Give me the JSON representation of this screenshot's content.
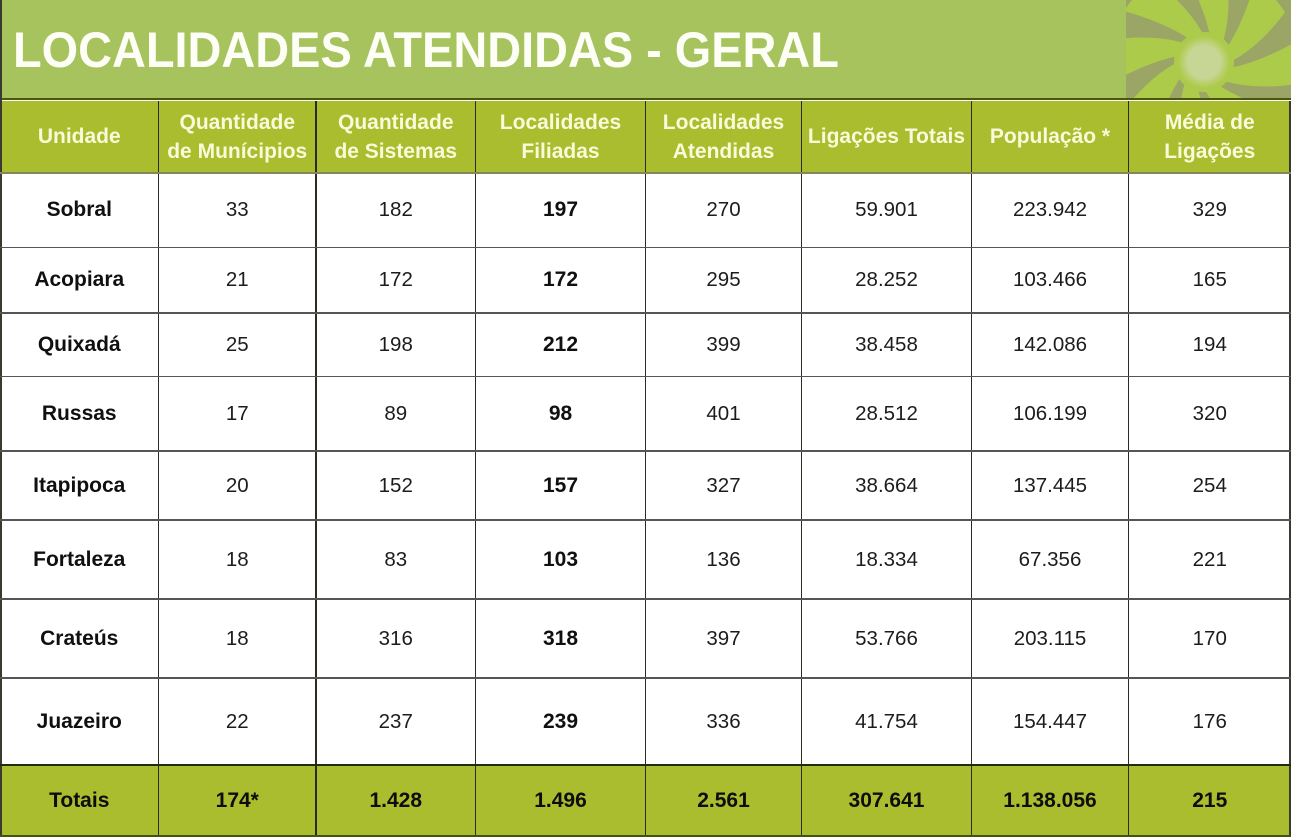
{
  "slide": {
    "title": "LOCALIDADES ATENDIDAS - GERAL",
    "logo_icon": "flower-pinwheel-logo",
    "colors": {
      "banner_green": "#a7c35e",
      "header_green": "#a9bd2e",
      "totals_green": "#a9bd2e",
      "logo_background_olive": "#9aa566",
      "logo_petal_green": "#adcb4b",
      "logo_center_pale": "#c7d795",
      "title_text": "#fdfef5",
      "header_text": "#f7fbda",
      "body_text": "#1c1c1c",
      "dark_border_olive": "#4a5710"
    }
  },
  "table": {
    "columns": [
      {
        "id": "unidade",
        "label": "Unidade",
        "bold_values": true
      },
      {
        "id": "municipios",
        "label": "Quantidade\nde Munícipios",
        "bold_values": false
      },
      {
        "id": "sistemas",
        "label": "Quantidade\nde Sistemas",
        "bold_values": false
      },
      {
        "id": "filiadas",
        "label": "Localidades\nFiliadas",
        "bold_values": true
      },
      {
        "id": "atendidas",
        "label": "Localidades\nAtendidas",
        "bold_values": false
      },
      {
        "id": "ligacoes",
        "label": "Ligações Totais",
        "bold_values": false
      },
      {
        "id": "populacao",
        "label": "População *",
        "bold_values": false
      },
      {
        "id": "media",
        "label": "Média de\nLigações",
        "bold_values": false
      }
    ],
    "rows": [
      {
        "unidade": "Sobral",
        "municipios": "33",
        "sistemas": "182",
        "filiadas": "197",
        "atendidas": "270",
        "ligacoes": "59.901",
        "populacao": "223.942",
        "media": "329"
      },
      {
        "unidade": "Acopiara",
        "municipios": "21",
        "sistemas": "172",
        "filiadas": "172",
        "atendidas": "295",
        "ligacoes": "28.252",
        "populacao": "103.466",
        "media": "165"
      },
      {
        "unidade": "Quixadá",
        "municipios": "25",
        "sistemas": "198",
        "filiadas": "212",
        "atendidas": "399",
        "ligacoes": "38.458",
        "populacao": "142.086",
        "media": "194"
      },
      {
        "unidade": "Russas",
        "municipios": "17",
        "sistemas": "89",
        "filiadas": "98",
        "atendidas": "401",
        "ligacoes": "28.512",
        "populacao": "106.199",
        "media": "320"
      },
      {
        "unidade": "Itapipoca",
        "municipios": "20",
        "sistemas": "152",
        "filiadas": "157",
        "atendidas": "327",
        "ligacoes": "38.664",
        "populacao": "137.445",
        "media": "254"
      },
      {
        "unidade": "Fortaleza",
        "municipios": "18",
        "sistemas": "83",
        "filiadas": "103",
        "atendidas": "136",
        "ligacoes": "18.334",
        "populacao": "67.356",
        "media": "221"
      },
      {
        "unidade": "Crateús",
        "municipios": "18",
        "sistemas": "316",
        "filiadas": "318",
        "atendidas": "397",
        "ligacoes": "53.766",
        "populacao": "203.115",
        "media": "170"
      },
      {
        "unidade": "Juazeiro",
        "municipios": "22",
        "sistemas": "237",
        "filiadas": "239",
        "atendidas": "336",
        "ligacoes": "41.754",
        "populacao": "154.447",
        "media": "176"
      }
    ],
    "totals_row": {
      "unidade": "Totais",
      "municipios": "174*",
      "sistemas": "1.428",
      "filiadas": "1.496",
      "atendidas": "2.561",
      "ligacoes": "307.641",
      "populacao": "1.138.056",
      "media": "215"
    }
  }
}
